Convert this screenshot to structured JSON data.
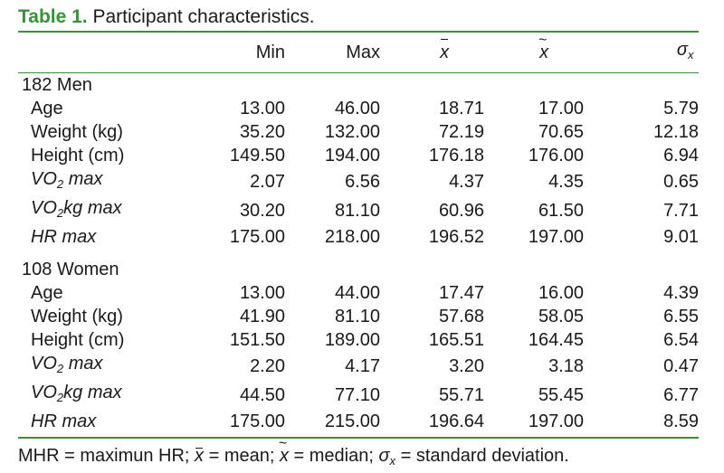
{
  "caption": {
    "label": "Table 1.",
    "text": "Participant characteristics."
  },
  "headers": {
    "min": "Min",
    "max": "Max",
    "mean_sym": "x",
    "median_sym": "x",
    "sd_sym": "σ",
    "sd_sub": "x"
  },
  "groups": [
    {
      "title": "182 Men",
      "rows": [
        {
          "label": "Age",
          "italic": false,
          "values": [
            "13.00",
            "46.00",
            "18.71",
            "17.00",
            "5.79"
          ]
        },
        {
          "label": "Weight (kg)",
          "italic": false,
          "values": [
            "35.20",
            "132.00",
            "72.19",
            "70.65",
            "12.18"
          ]
        },
        {
          "label": "Height (cm)",
          "italic": false,
          "values": [
            "149.50",
            "194.00",
            "176.18",
            "176.00",
            "6.94"
          ]
        },
        {
          "label_parts": [
            "VO",
            "2",
            " max"
          ],
          "italic": true,
          "values": [
            "2.07",
            "6.56",
            "4.37",
            "4.35",
            "0.65"
          ]
        },
        {
          "label_parts": [
            "VO",
            "2",
            "kg max"
          ],
          "italic": true,
          "values": [
            "30.20",
            "81.10",
            "60.96",
            "61.50",
            "7.71"
          ]
        },
        {
          "label": "HR max",
          "italic": true,
          "values": [
            "175.00",
            "218.00",
            "196.52",
            "197.00",
            "9.01"
          ]
        }
      ]
    },
    {
      "title": "108 Women",
      "rows": [
        {
          "label": "Age",
          "italic": false,
          "values": [
            "13.00",
            "44.00",
            "17.47",
            "16.00",
            "4.39"
          ]
        },
        {
          "label": "Weight (kg)",
          "italic": false,
          "values": [
            "41.90",
            "81.10",
            "57.68",
            "58.05",
            "6.55"
          ]
        },
        {
          "label": "Height (cm)",
          "italic": false,
          "values": [
            "151.50",
            "189.00",
            "165.51",
            "164.45",
            "6.54"
          ]
        },
        {
          "label_parts": [
            "VO",
            "2",
            " max"
          ],
          "italic": true,
          "values": [
            "2.20",
            "4.17",
            "3.20",
            "3.18",
            "0.47"
          ]
        },
        {
          "label_parts": [
            "VO",
            "2",
            "kg max"
          ],
          "italic": true,
          "values": [
            "44.50",
            "77.10",
            "55.71",
            "55.45",
            "6.77"
          ]
        },
        {
          "label": "HR max",
          "italic": true,
          "values": [
            "175.00",
            "215.00",
            "196.64",
            "197.00",
            "8.59"
          ]
        }
      ]
    }
  ],
  "footnote": {
    "part1": "MHR = maximun HR; ",
    "mean_sym": "x",
    "part2": " = mean; ",
    "median_sym": "x",
    "part3": " = median; ",
    "sd_sym": "σ",
    "sd_sub": "x",
    "part4": " = standard deviation."
  },
  "colors": {
    "accent": "#3a8f3a",
    "text": "#1a1a1a"
  }
}
